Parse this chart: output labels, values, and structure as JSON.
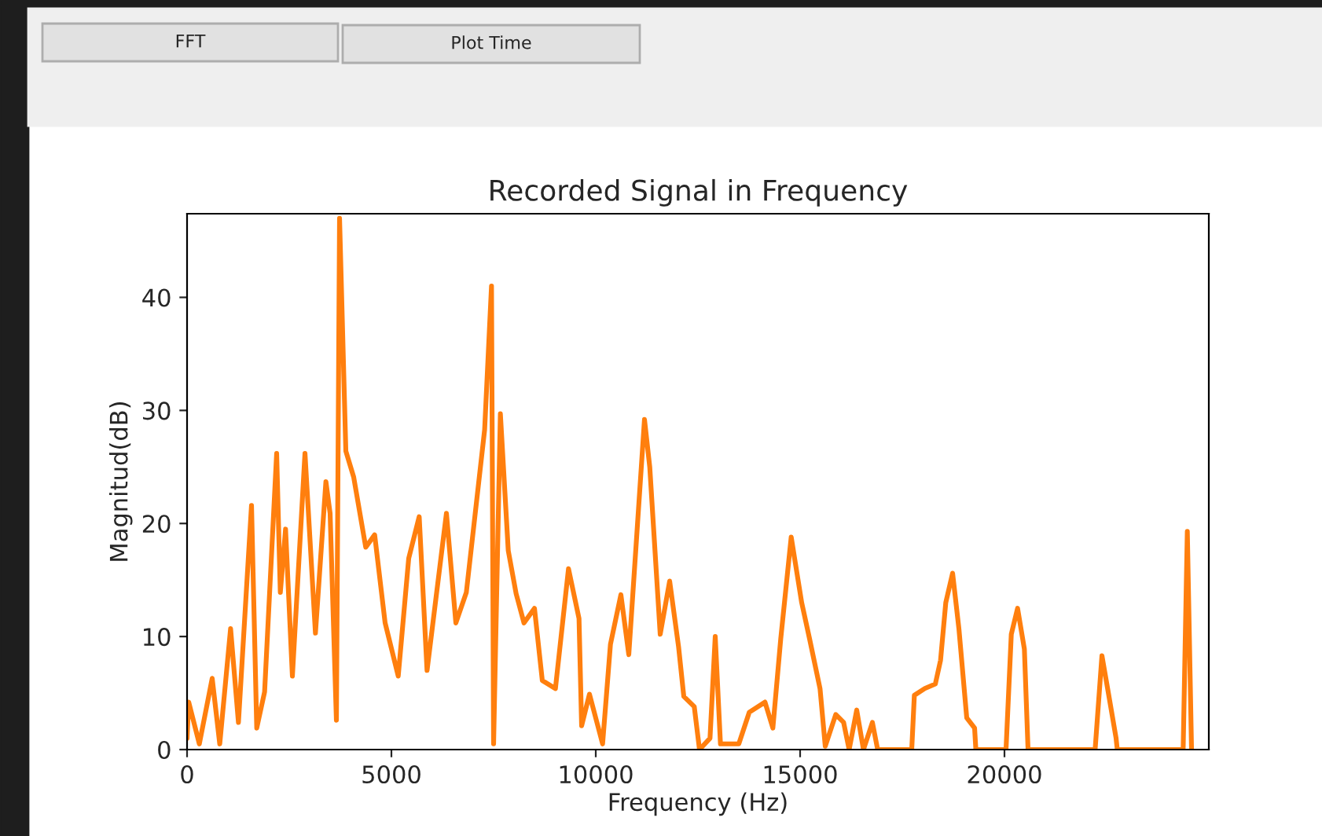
{
  "chart_data": {
    "type": "line",
    "title": "Recorded Signal in Frequency",
    "xlabel": "Frequency (Hz)",
    "ylabel": "Magnitud(dB)",
    "annotations": [
      "FFT",
      "Plot Time"
    ],
    "x": [
      0,
      40,
      300,
      615,
      800,
      1065,
      1257,
      1577,
      1705,
      1897,
      2192,
      2282,
      2410,
      2577,
      2885,
      3141,
      3397,
      3500,
      3654,
      3731,
      3885,
      4077,
      4372,
      4590,
      4846,
      5167,
      5423,
      5680,
      5872,
      6346,
      6577,
      6833,
      7281,
      7449,
      7500,
      7666,
      7859,
      8051,
      8244,
      8500,
      8692,
      9013,
      9333,
      9590,
      9654,
      9846,
      10167,
      10359,
      10615,
      10808,
      11192,
      11321,
      11577,
      11808,
      12026,
      12154,
      12410,
      12538,
      12795,
      12923,
      13051,
      13500,
      13756,
      14141,
      14333,
      14526,
      14782,
      15038,
      15231,
      15487,
      15615,
      15872,
      16064,
      16200,
      16385,
      16550,
      16769,
      16897,
      17731,
      17795,
      18051,
      18308,
      18436,
      18564,
      18731,
      18885,
      19077,
      19269,
      19300,
      20038,
      20167,
      20321,
      20487,
      20577,
      22218,
      22385,
      22538,
      22731,
      22760,
      24372,
      24474,
      24577
    ],
    "series": [
      {
        "color": "#ff7f0e",
        "values": [
          1,
          4.2,
          0.5,
          6.3,
          0.5,
          10.7,
          2.4,
          21.6,
          1.9,
          5.1,
          26.2,
          13.9,
          19.5,
          6.5,
          26.2,
          10.3,
          23.7,
          20.9,
          2.6,
          47,
          26.4,
          24.1,
          17.9,
          19,
          11.2,
          6.5,
          16.9,
          20.6,
          7,
          20.9,
          11.2,
          13.9,
          28.3,
          41,
          0.5,
          29.7,
          17.6,
          13.8,
          11.2,
          12.5,
          6.1,
          5.4,
          16,
          11.6,
          2.1,
          4.9,
          0.5,
          9.3,
          13.7,
          8.4,
          29.2,
          25,
          10.2,
          14.9,
          9.1,
          4.7,
          3.8,
          0,
          1,
          10,
          0.5,
          0.5,
          3.3,
          4.2,
          1.9,
          9.8,
          18.8,
          13,
          9.8,
          5.4,
          0.3,
          3.1,
          2.4,
          0,
          3.5,
          0,
          2.4,
          0,
          0,
          4.8,
          5.4,
          5.8,
          7.9,
          13,
          15.6,
          10.7,
          2.8,
          1.9,
          0,
          0,
          10.2,
          12.5,
          8.9,
          0,
          0,
          8.3,
          5.1,
          1,
          0,
          0,
          19.3,
          0
        ]
      }
    ],
    "xlim": [
      0,
      25000
    ],
    "ylim": [
      0,
      47.4
    ],
    "xticks": [
      0,
      5000,
      10000,
      15000,
      20000
    ],
    "yticks": [
      0,
      10,
      20,
      30,
      40
    ],
    "grid": false,
    "legend": false
  }
}
